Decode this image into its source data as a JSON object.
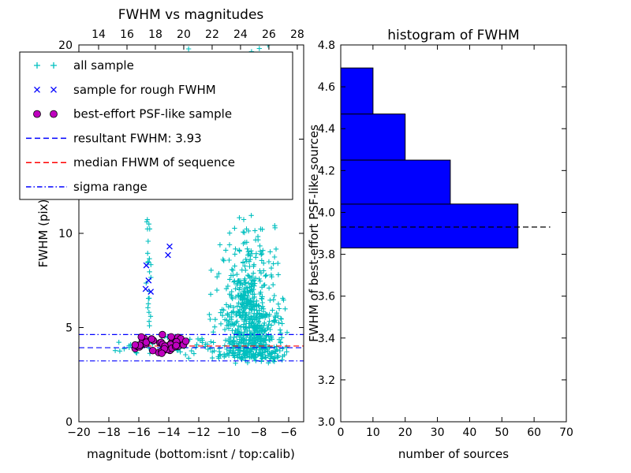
{
  "figure": {
    "background": "#ffffff"
  },
  "chart_data": [
    {
      "type": "scatter",
      "title": "FWHM vs magnitudes",
      "xlabel": "magnitude (bottom:isnt / top:calib)",
      "ylabel": "FWHM (pix)",
      "xlim": [
        -20,
        -5
      ],
      "ylim": [
        0,
        20
      ],
      "x_ticks": [
        -20,
        -18,
        -16,
        -14,
        -12,
        -10,
        -8,
        -6
      ],
      "y_ticks": [
        0,
        5,
        10,
        15,
        20
      ],
      "top_axis": {
        "lim": [
          12.61,
          28.45
        ],
        "ticks": [
          14,
          16,
          18,
          20,
          22,
          24,
          26,
          28
        ]
      },
      "legend": [
        {
          "label": "all sample",
          "marker": "plus",
          "color": "#00bfbf",
          "style": "none"
        },
        {
          "label": "sample for rough FWHM",
          "marker": "x",
          "color": "#0000ff",
          "style": "none"
        },
        {
          "label": "best-effort PSF-like sample",
          "marker": "circle",
          "color": "#bf00bf",
          "style": "none"
        },
        {
          "label": "resultant FWHM: 3.93",
          "marker": "line",
          "color": "#0000ff",
          "style": "dashed"
        },
        {
          "label": "median FHWM of sequence",
          "marker": "line",
          "color": "#ff0000",
          "style": "dashed"
        },
        {
          "label": "sigma range",
          "marker": "line",
          "color": "#0000ff",
          "style": "dashdot"
        }
      ],
      "lines": [
        {
          "name": "resultant-fwhm-line",
          "y": 3.93,
          "x0": -20,
          "x1": -5,
          "color": "#0000ff",
          "style": "dashed"
        },
        {
          "name": "median-fwhm-line",
          "y": 4.02,
          "x0": -16.1,
          "x1": -5,
          "color": "#ff0000",
          "style": "dashed"
        },
        {
          "name": "sigma-upper-line",
          "y": 4.63,
          "x0": -20,
          "x1": -5,
          "color": "#0000ff",
          "style": "dashdot"
        },
        {
          "name": "sigma-lower-line",
          "y": 3.23,
          "x0": -20,
          "x1": -5,
          "color": "#0000ff",
          "style": "dashdot"
        }
      ],
      "point_clusters": [
        {
          "name": "all-sample-main-cloud",
          "marker": "plus",
          "color": "#00bfbf",
          "n": 620,
          "x": {
            "dist": "normal",
            "mu": -8.6,
            "sigma": 1.05,
            "min": -11.4,
            "max": -6.1
          },
          "y": {
            "dist": "halfnormal",
            "base": 3.35,
            "sigma": 2.6,
            "max": 16.8
          }
        },
        {
          "name": "all-sample-column",
          "marker": "plus",
          "color": "#00bfbf",
          "n": 55,
          "x": {
            "dist": "normal",
            "mu": -8.8,
            "sigma": 0.3,
            "min": -9.5,
            "max": -8.1
          },
          "y": {
            "dist": "halfnormal",
            "base": 3.6,
            "sigma": 4.2,
            "max": 14.2
          }
        },
        {
          "name": "all-sample-left-streak",
          "marker": "plus",
          "color": "#00bfbf",
          "n": 26,
          "x": {
            "dist": "normal",
            "mu": -15.35,
            "sigma": 0.1,
            "min": -15.65,
            "max": -15.05
          },
          "y": {
            "dist": "uniform",
            "min": 4.1,
            "max": 11.3
          }
        },
        {
          "name": "all-sample-top-right",
          "marker": "plus",
          "color": "#00bfbf",
          "n": 11,
          "x": {
            "dist": "uniform",
            "min": -9.8,
            "max": -6.7
          },
          "y": {
            "dist": "uniform",
            "min": 17.2,
            "max": 20.0
          }
        },
        {
          "name": "all-sample-top-left",
          "marker": "plus",
          "color": "#00bfbf",
          "n": 3,
          "x": {
            "dist": "uniform",
            "min": -13.2,
            "max": -12.6
          },
          "y": {
            "dist": "uniform",
            "min": 19.2,
            "max": 19.9
          }
        },
        {
          "name": "all-sample-band",
          "marker": "plus",
          "color": "#00bfbf",
          "n": 75,
          "x": {
            "dist": "uniform",
            "min": -17.6,
            "max": -6.1
          },
          "y": {
            "dist": "normal",
            "mu": 3.95,
            "sigma": 0.32,
            "min": 3.15,
            "max": 4.95
          }
        },
        {
          "name": "all-sample-low",
          "marker": "plus",
          "color": "#00bfbf",
          "n": 22,
          "x": {
            "dist": "uniform",
            "min": -9.6,
            "max": -6.4
          },
          "y": {
            "dist": "uniform",
            "min": 3.0,
            "max": 3.5
          }
        },
        {
          "name": "psf-like-sample",
          "marker": "circle",
          "color": "#bf00bf",
          "n": 50,
          "x": {
            "dist": "uniform",
            "min": -16.25,
            "max": -12.85
          },
          "y": {
            "dist": "normal",
            "mu": 4.12,
            "sigma": 0.22,
            "min": 3.62,
            "max": 4.72
          }
        }
      ],
      "rough_sample_points": [
        [
          -15.5,
          8.3
        ],
        [
          -15.35,
          7.5
        ],
        [
          -15.2,
          6.9
        ],
        [
          -13.95,
          9.3
        ],
        [
          -15.55,
          7.05
        ],
        [
          -14.05,
          8.85
        ]
      ]
    },
    {
      "type": "bar",
      "orientation": "horizontal",
      "title": "histogram of FWHM",
      "xlabel": "number of sources",
      "ylabel": "FWHM of best-effort PSF-like sources",
      "xlim": [
        0,
        70
      ],
      "ylim": [
        3.0,
        4.8
      ],
      "x_ticks": [
        0,
        10,
        20,
        30,
        40,
        50,
        60,
        70
      ],
      "y_ticks": [
        3.0,
        3.2,
        3.4,
        3.6,
        3.8,
        4.0,
        4.2,
        4.4,
        4.6,
        4.8
      ],
      "bin_edges": [
        3.83,
        4.04,
        4.25,
        4.47,
        4.69
      ],
      "counts": [
        55,
        34,
        20,
        10
      ],
      "bar_color": "#0000ff",
      "marker_line": {
        "y": 3.93,
        "x0": 0,
        "x1": 65,
        "color": "#000000",
        "style": "dashed"
      }
    }
  ]
}
